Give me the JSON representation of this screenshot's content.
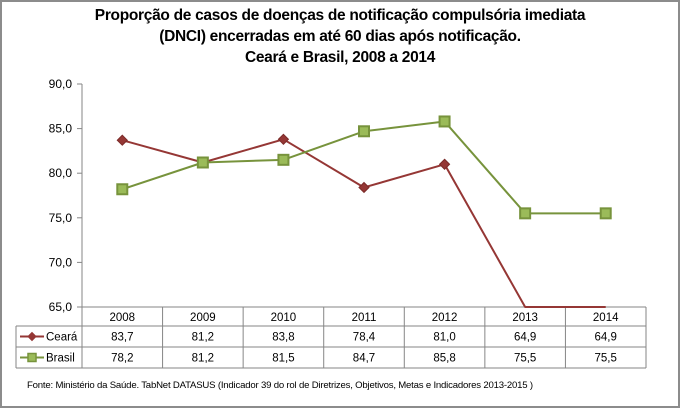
{
  "chart_data": {
    "type": "line",
    "title": [
      "Proporção de casos de doenças de notificação compulsória imediata",
      "(DNCI) encerradas em até 60 dias após notificação.",
      "Ceará e Brasil, 2008 a 2014"
    ],
    "categories": [
      "2008",
      "2009",
      "2010",
      "2011",
      "2012",
      "2013",
      "2014"
    ],
    "series": [
      {
        "name": "Ceará",
        "values": [
          83.7,
          81.2,
          83.8,
          78.4,
          81.0,
          64.9,
          64.9
        ],
        "labels": [
          "83,7",
          "81,2",
          "83,8",
          "78,4",
          "81,0",
          "64,9",
          "64,9"
        ],
        "color": "#953735",
        "marker": "diamond"
      },
      {
        "name": "Brasil",
        "values": [
          78.2,
          81.2,
          81.5,
          84.7,
          85.8,
          75.5,
          75.5
        ],
        "labels": [
          "78,2",
          "81,2",
          "81,5",
          "84,7",
          "85,8",
          "75,5",
          "75,5"
        ],
        "color": "#77933C",
        "fill": "#9BBB59",
        "marker": "square"
      }
    ],
    "yticks": [
      "90,0",
      "85,0",
      "80,0",
      "75,0",
      "70,0",
      "65,0"
    ],
    "ytick_values": [
      90,
      85,
      80,
      75,
      70,
      65
    ],
    "ylim": [
      65,
      90
    ],
    "xlabel": "",
    "ylabel": "",
    "grid": false,
    "legend": "data-table"
  },
  "footer": "Fonte: Ministério da Saúde. TabNet DATASUS (Indicador 39 do rol de Diretrizes, Objetivos, Metas e Indicadores 2013-2015 )"
}
